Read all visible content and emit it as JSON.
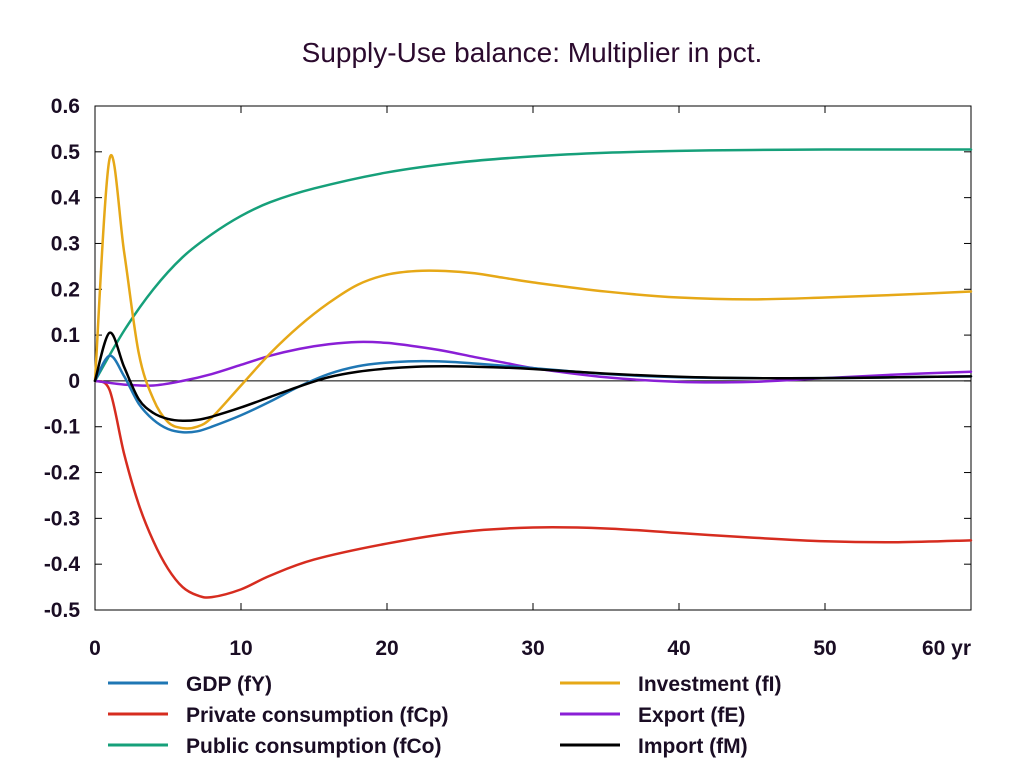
{
  "chart_data": {
    "type": "line",
    "title": "Supply-Use balance: Multiplier in pct.",
    "xlabel": "",
    "ylabel": "",
    "x_unit_label": "yr",
    "xlim": [
      0,
      60
    ],
    "ylim": [
      -0.5,
      0.6
    ],
    "x_ticks": [
      0,
      10,
      20,
      30,
      40,
      50,
      60
    ],
    "x_tick_labels": [
      "0",
      "10",
      "20",
      "30",
      "40",
      "50",
      "60 yr"
    ],
    "y_ticks": [
      0.6,
      0.5,
      0.4,
      0.3,
      0.2,
      0.1,
      0,
      -0.1,
      -0.2,
      -0.3,
      -0.4,
      -0.5
    ],
    "y_tick_labels": [
      "0.6",
      "0.5",
      "0.4",
      "0.3",
      "0.2",
      "0.1",
      "0",
      "-0.1",
      "-0.2",
      "-0.3",
      "-0.4",
      "-0.5"
    ],
    "grid": false,
    "legend_position": "bottom",
    "series": [
      {
        "name": "GDP (fY)",
        "color": "#1f77b4",
        "x": [
          0,
          1,
          2,
          3,
          4,
          5,
          6,
          7,
          8,
          10,
          12,
          14,
          16,
          18,
          20,
          22,
          24,
          26,
          28,
          30,
          35,
          40,
          45,
          50,
          55,
          60
        ],
        "y": [
          0,
          0.055,
          0.01,
          -0.05,
          -0.085,
          -0.105,
          -0.112,
          -0.11,
          -0.1,
          -0.075,
          -0.045,
          -0.012,
          0.015,
          0.032,
          0.04,
          0.043,
          0.042,
          0.038,
          0.033,
          0.028,
          0.015,
          0.008,
          0.006,
          0.006,
          0.008,
          0.01
        ]
      },
      {
        "name": "Private consumption (fCp)",
        "color": "#d62c1f",
        "x": [
          0,
          1,
          2,
          3,
          4,
          5,
          6,
          7,
          8,
          10,
          12,
          15,
          20,
          25,
          30,
          35,
          40,
          45,
          50,
          55,
          60
        ],
        "y": [
          0,
          -0.02,
          -0.16,
          -0.27,
          -0.35,
          -0.41,
          -0.45,
          -0.468,
          -0.472,
          -0.455,
          -0.425,
          -0.39,
          -0.355,
          -0.33,
          -0.32,
          -0.322,
          -0.332,
          -0.342,
          -0.35,
          -0.352,
          -0.348
        ]
      },
      {
        "name": "Public consumption (fCo)",
        "color": "#16a07a",
        "x": [
          0,
          2,
          4,
          6,
          8,
          10,
          12,
          15,
          20,
          25,
          30,
          35,
          40,
          45,
          50,
          55,
          60
        ],
        "y": [
          0,
          0.11,
          0.2,
          0.27,
          0.32,
          0.36,
          0.39,
          0.42,
          0.455,
          0.477,
          0.49,
          0.498,
          0.502,
          0.504,
          0.505,
          0.505,
          0.505
        ]
      },
      {
        "name": "Investment (fI)",
        "color": "#e6a817",
        "x": [
          0,
          1,
          2,
          3,
          4,
          5,
          6,
          7,
          8,
          10,
          12,
          14,
          16,
          18,
          20,
          22,
          24,
          26,
          28,
          30,
          35,
          40,
          45,
          50,
          55,
          60
        ],
        "y": [
          0,
          0.485,
          0.28,
          0.06,
          -0.04,
          -0.09,
          -0.103,
          -0.1,
          -0.08,
          -0.01,
          0.06,
          0.12,
          0.17,
          0.21,
          0.232,
          0.24,
          0.24,
          0.235,
          0.225,
          0.215,
          0.195,
          0.182,
          0.178,
          0.182,
          0.188,
          0.195
        ]
      },
      {
        "name": "Export (fE)",
        "color": "#8a1fd6",
        "x": [
          0,
          2,
          4,
          6,
          8,
          10,
          12,
          14,
          16,
          18,
          20,
          22,
          24,
          26,
          28,
          30,
          35,
          40,
          45,
          50,
          55,
          60
        ],
        "y": [
          0,
          -0.008,
          -0.01,
          0,
          0.015,
          0.035,
          0.055,
          0.07,
          0.08,
          0.085,
          0.083,
          0.075,
          0.065,
          0.052,
          0.04,
          0.028,
          0.008,
          -0.002,
          -0.002,
          0.006,
          0.014,
          0.02
        ]
      },
      {
        "name": "Import (fM)",
        "color": "#000000",
        "x": [
          0,
          1,
          2,
          3,
          4,
          5,
          6,
          7,
          8,
          10,
          12,
          14,
          16,
          18,
          20,
          22,
          24,
          26,
          28,
          30,
          35,
          40,
          45,
          50,
          55,
          60
        ],
        "y": [
          0,
          0.105,
          0.03,
          -0.04,
          -0.07,
          -0.083,
          -0.087,
          -0.085,
          -0.078,
          -0.058,
          -0.035,
          -0.012,
          0.008,
          0.02,
          0.027,
          0.031,
          0.032,
          0.031,
          0.029,
          0.026,
          0.016,
          0.009,
          0.006,
          0.006,
          0.008,
          0.01
        ]
      }
    ]
  }
}
